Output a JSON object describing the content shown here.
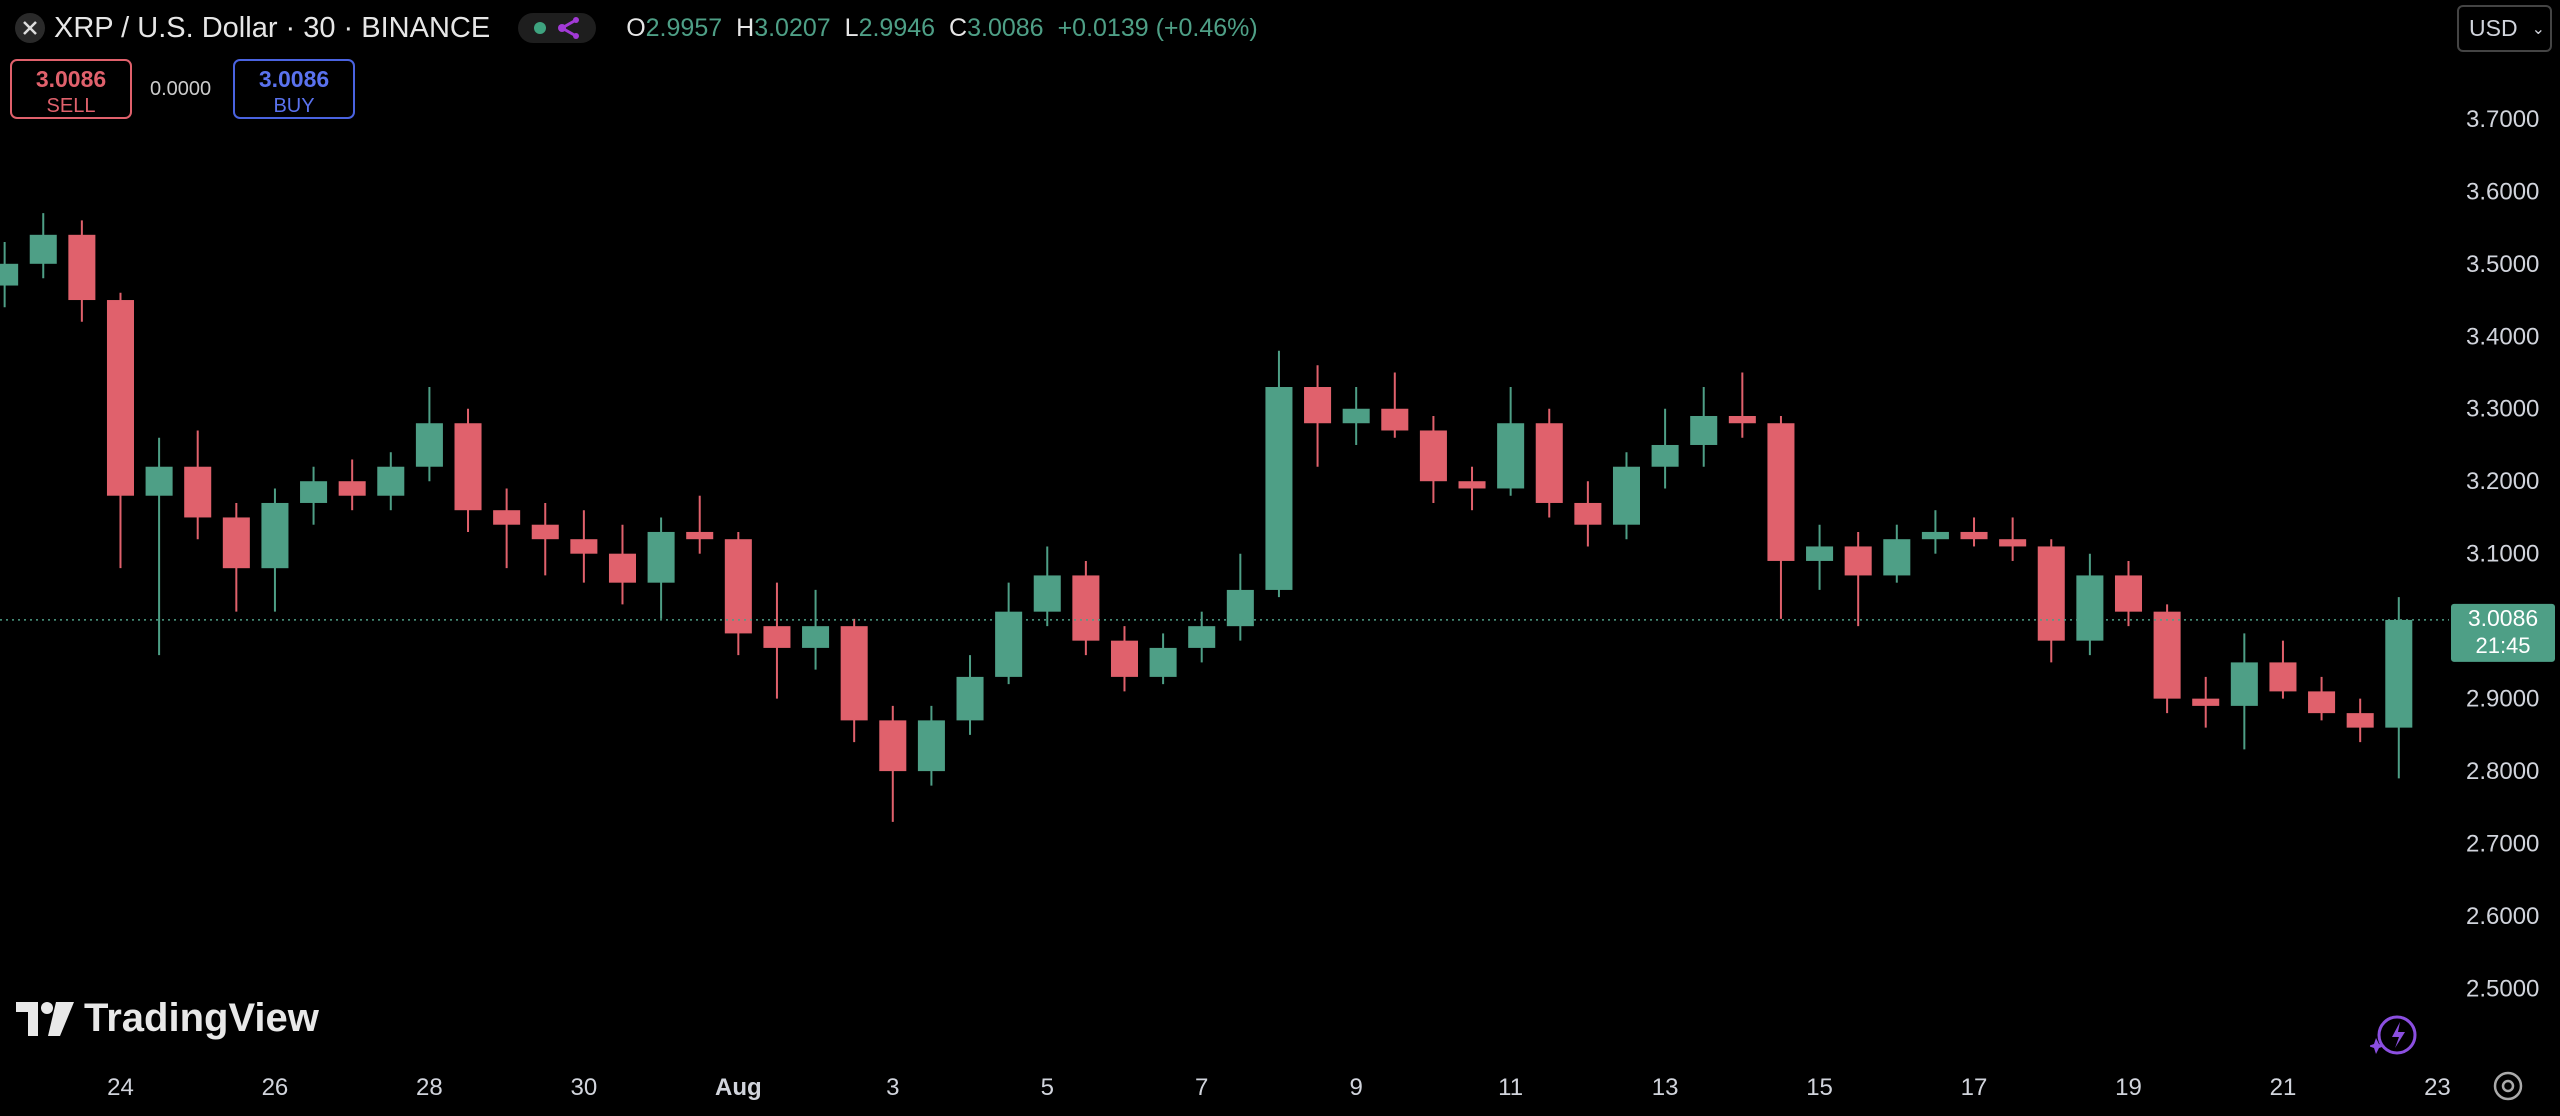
{
  "header": {
    "title": "XRP / U.S. Dollar · 30 · BINANCE",
    "ohlc": [
      {
        "label": "O",
        "value": 2.9957
      },
      {
        "label": "H",
        "value": 3.0207
      },
      {
        "label": "L",
        "value": 2.9946
      },
      {
        "label": "C",
        "value": 3.0086
      }
    ],
    "change": "+0.0139 (+0.46%)",
    "currency": "USD"
  },
  "trade": {
    "sell_price": 3.0086,
    "sell_label": "SELL",
    "spread": "0.0000",
    "buy_price": 3.0086,
    "buy_label": "BUY"
  },
  "logo": "TradingView",
  "chart_data": {
    "type": "candlestick",
    "up_color": "#4e9f86",
    "down_color": "#e0616c",
    "xlim": [
      22.44,
      54.15
    ],
    "ylim": [
      2.4,
      3.864
    ],
    "xticks": [
      24,
      26,
      28,
      30,
      {
        "value": 32,
        "label": "Aug"
      },
      {
        "value": 34,
        "label": "3"
      },
      {
        "value": 36,
        "label": "5"
      },
      {
        "value": 38,
        "label": "7"
      },
      {
        "value": 40,
        "label": "9"
      },
      {
        "value": 42,
        "label": "11"
      },
      {
        "value": 44,
        "label": "13"
      },
      {
        "value": 46,
        "label": "15"
      },
      {
        "value": 48,
        "label": "17"
      },
      {
        "value": 50,
        "label": "19"
      },
      {
        "value": 52,
        "label": "21"
      },
      {
        "value": 54,
        "label": "23"
      }
    ],
    "yticks": [
      {
        "value": 2.5,
        "label": "2.5000"
      },
      {
        "value": 2.6,
        "label": "2.6000"
      },
      {
        "value": 2.7,
        "label": "2.7000"
      },
      {
        "value": 2.8,
        "label": "2.8000"
      },
      {
        "value": 2.9,
        "label": "2.9000"
      },
      {
        "value": 3.0,
        "label": "3.0000"
      },
      {
        "value": 3.1,
        "label": "3.1000"
      },
      {
        "value": 3.2,
        "label": "3.2000"
      },
      {
        "value": 3.3,
        "label": "3.3000"
      },
      {
        "value": 3.4,
        "label": "3.4000"
      },
      {
        "value": 3.5,
        "label": "3.5000"
      },
      {
        "value": 3.6,
        "label": "3.6000"
      },
      {
        "value": 3.7,
        "label": "3.7000"
      }
    ],
    "x": [
      22.5,
      23,
      23.5,
      24,
      24.5,
      25,
      25.5,
      26,
      26.5,
      27,
      27.5,
      28,
      28.5,
      29,
      29.5,
      30,
      30.5,
      31,
      31.5,
      32,
      32.5,
      33,
      33.5,
      34,
      34.5,
      35,
      35.5,
      36,
      36.5,
      37,
      37.5,
      38,
      38.5,
      39,
      39.5,
      40,
      40.5,
      41,
      41.5,
      42,
      42.5,
      43,
      43.5,
      44,
      44.5,
      45,
      45.5,
      46,
      46.5,
      47,
      47.5,
      48,
      48.5,
      49,
      49.5,
      50,
      50.5,
      51,
      51.5,
      52,
      52.5,
      53,
      53.5
    ],
    "open": [
      3.47,
      3.5,
      3.54,
      3.45,
      3.18,
      3.22,
      3.15,
      3.08,
      3.17,
      3.2,
      3.18,
      3.22,
      3.28,
      3.16,
      3.14,
      3.12,
      3.1,
      3.06,
      3.13,
      3.12,
      3.0,
      2.97,
      3.0,
      2.87,
      2.8,
      2.87,
      2.93,
      3.02,
      3.07,
      2.98,
      2.93,
      2.97,
      3.0,
      3.05,
      3.33,
      3.28,
      3.3,
      3.27,
      3.2,
      3.19,
      3.28,
      3.17,
      3.14,
      3.22,
      3.25,
      3.29,
      3.28,
      3.09,
      3.11,
      3.07,
      3.12,
      3.13,
      3.12,
      3.11,
      2.98,
      3.07,
      3.02,
      2.9,
      2.89,
      2.95,
      2.91,
      2.88,
      2.86
    ],
    "high": [
      3.53,
      3.57,
      3.56,
      3.46,
      3.26,
      3.27,
      3.17,
      3.19,
      3.22,
      3.23,
      3.24,
      3.33,
      3.3,
      3.19,
      3.17,
      3.16,
      3.14,
      3.15,
      3.18,
      3.13,
      3.06,
      3.05,
      3.01,
      2.89,
      2.89,
      2.96,
      3.06,
      3.11,
      3.09,
      3.0,
      2.99,
      3.02,
      3.1,
      3.38,
      3.36,
      3.33,
      3.35,
      3.29,
      3.22,
      3.33,
      3.3,
      3.2,
      3.24,
      3.3,
      3.33,
      3.35,
      3.29,
      3.14,
      3.13,
      3.14,
      3.16,
      3.15,
      3.15,
      3.12,
      3.1,
      3.09,
      3.03,
      2.93,
      2.99,
      2.98,
      2.93,
      2.9,
      3.04
    ],
    "low": [
      3.44,
      3.48,
      3.42,
      3.08,
      2.96,
      3.12,
      3.02,
      3.02,
      3.14,
      3.16,
      3.16,
      3.2,
      3.13,
      3.08,
      3.07,
      3.06,
      3.03,
      3.01,
      3.1,
      2.96,
      2.9,
      2.94,
      2.84,
      2.73,
      2.78,
      2.85,
      2.92,
      3.0,
      2.96,
      2.91,
      2.92,
      2.95,
      2.98,
      3.04,
      3.22,
      3.25,
      3.26,
      3.17,
      3.16,
      3.18,
      3.15,
      3.11,
      3.12,
      3.19,
      3.22,
      3.26,
      3.01,
      3.05,
      3.0,
      3.06,
      3.1,
      3.11,
      3.09,
      2.95,
      2.96,
      3.0,
      2.88,
      2.86,
      2.83,
      2.9,
      2.87,
      2.84,
      2.79
    ],
    "close": [
      3.5,
      3.54,
      3.45,
      3.18,
      3.22,
      3.15,
      3.08,
      3.17,
      3.2,
      3.18,
      3.22,
      3.28,
      3.16,
      3.14,
      3.12,
      3.1,
      3.06,
      3.13,
      3.12,
      2.99,
      2.97,
      3.0,
      2.87,
      2.8,
      2.87,
      2.93,
      3.02,
      3.07,
      2.98,
      2.93,
      2.97,
      3.0,
      3.05,
      3.33,
      3.28,
      3.3,
      3.27,
      3.2,
      3.19,
      3.28,
      3.17,
      3.14,
      3.22,
      3.25,
      3.29,
      3.28,
      3.09,
      3.11,
      3.07,
      3.12,
      3.13,
      3.12,
      3.11,
      2.98,
      3.07,
      3.02,
      2.9,
      2.89,
      2.95,
      2.91,
      2.88,
      2.86,
      3.0086
    ],
    "last_price": 3.0086,
    "countdown": "21:45"
  }
}
